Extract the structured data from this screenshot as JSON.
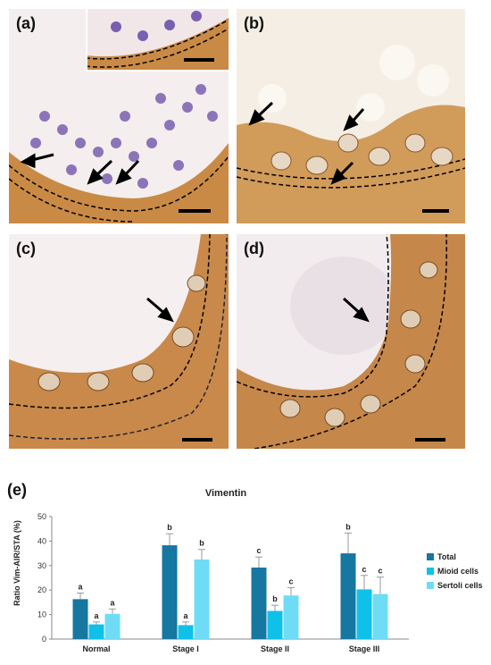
{
  "panels": {
    "a": {
      "label": "(a)"
    },
    "b": {
      "label": "(b)"
    },
    "c": {
      "label": "(c)"
    },
    "d": {
      "label": "(d)"
    },
    "e": {
      "label": "(e)"
    }
  },
  "colors": {
    "total": "#1677a0",
    "mioid": "#0fc1e8",
    "sertoli": "#6fdcf5",
    "stain_brown": "#a8641e",
    "nuclei": "#6a4fa0"
  },
  "chart_data": {
    "type": "bar",
    "title": "Vimentin",
    "xlabel": "",
    "ylabel": "Ratio Vim-AIR/STA (%)",
    "ylim": [
      0,
      50
    ],
    "yticks": [
      0,
      10,
      20,
      30,
      40,
      50
    ],
    "grid": false,
    "legend_position": "right",
    "categories": [
      "Normal",
      "Stage I",
      "Stage II",
      "Stage III"
    ],
    "series": [
      {
        "name": "Total",
        "values": [
          16.3,
          38.3,
          29.2,
          35.0
        ],
        "errors": [
          2.5,
          4.7,
          4.3,
          8.3
        ],
        "letters": [
          "a",
          "b",
          "c",
          "b"
        ]
      },
      {
        "name": "Mioid cells",
        "values": [
          6.0,
          5.7,
          11.5,
          20.3
        ],
        "errors": [
          1.0,
          1.3,
          2.3,
          5.7
        ],
        "letters": [
          "a",
          "a",
          "b",
          "c"
        ]
      },
      {
        "name": "Sertoli cells",
        "values": [
          10.3,
          32.5,
          17.8,
          18.4
        ],
        "errors": [
          2.0,
          4.1,
          3.2,
          6.9
        ],
        "letters": [
          "a",
          "b",
          "c",
          "c"
        ]
      }
    ]
  }
}
